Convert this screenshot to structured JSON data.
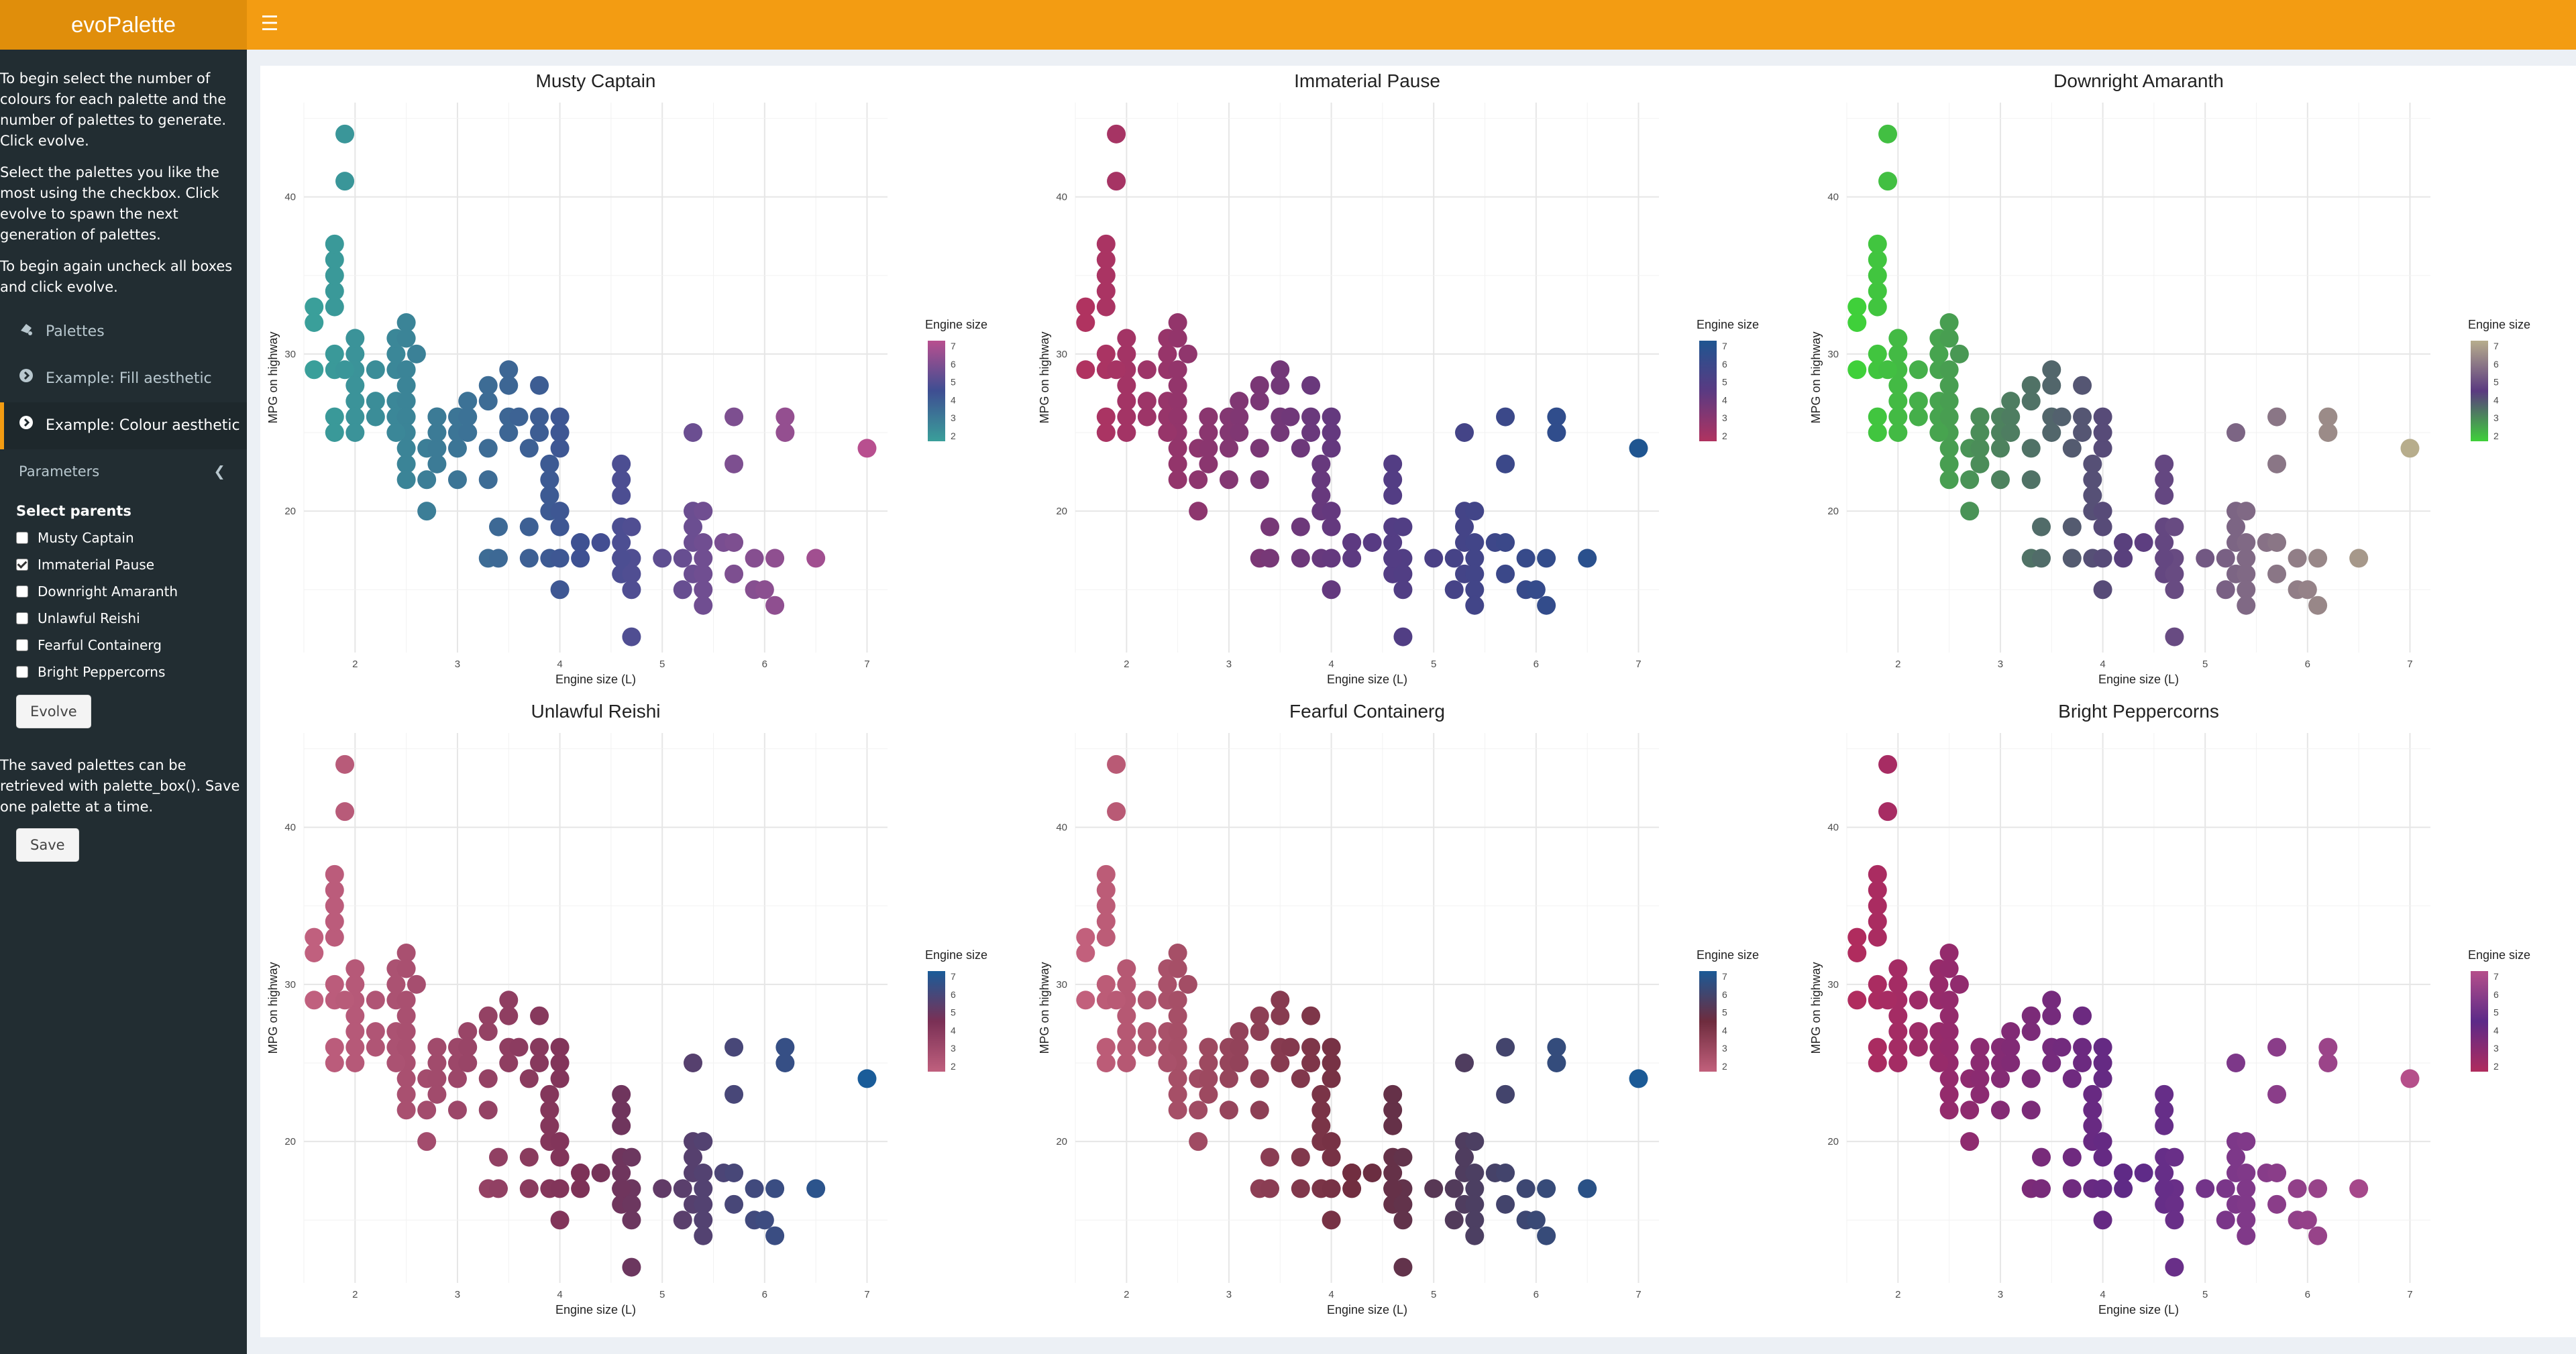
{
  "app": {
    "title": "evoPalette"
  },
  "sidebar": {
    "intro": [
      "To begin select the number of colours for each palette and the number of palettes to generate. Click evolve.",
      "Select the palettes you like the most using the checkbox. Click evolve to spawn the next generation of palettes.",
      "To begin again uncheck all boxes and click evolve."
    ],
    "menu": [
      {
        "label": "Palettes",
        "icon": "palette-icon"
      },
      {
        "label": "Example: Fill aesthetic",
        "icon": "chevron-circle-right-icon"
      },
      {
        "label": "Example: Colour aesthetic",
        "icon": "chevron-circle-right-icon",
        "active": true
      }
    ],
    "parameters_label": "Parameters",
    "select_parents_label": "Select parents",
    "parents": [
      {
        "label": "Musty Captain",
        "checked": false
      },
      {
        "label": "Immaterial Pause",
        "checked": true
      },
      {
        "label": "Downright Amaranth",
        "checked": false
      },
      {
        "label": "Unlawful Reishi",
        "checked": false
      },
      {
        "label": "Fearful Containerg",
        "checked": false
      },
      {
        "label": "Bright Peppercorns",
        "checked": false
      }
    ],
    "evolve_label": "Evolve",
    "save_note": "The saved palettes can be retrieved with palette_box(). Save one palette at a time.",
    "save_label": "Save"
  },
  "chart_data": [
    {
      "type": "scatter",
      "title": "Musty Captain",
      "xlabel": "Engine size (L)",
      "ylabel": "MPG on highway",
      "legend_title": "Engine size",
      "legend_ticks": [
        "7",
        "6",
        "5",
        "4",
        "3",
        "2"
      ],
      "palette": {
        "low": "#3a9f9a",
        "mid": "#3e4e92",
        "high": "#b84f8f"
      },
      "x_ticks": [
        "2",
        "3",
        "4",
        "5",
        "6",
        "7"
      ],
      "y_ticks": [
        "20",
        "30",
        "40"
      ],
      "xlim": [
        1.5,
        7.2
      ],
      "ylim": [
        11,
        46
      ]
    },
    {
      "type": "scatter",
      "title": "Immaterial Pause",
      "xlabel": "Engine size (L)",
      "ylabel": "MPG on highway",
      "legend_title": "Engine size",
      "legend_ticks": [
        "7",
        "6",
        "5",
        "4",
        "3",
        "2"
      ],
      "palette": {
        "low": "#b03360",
        "mid": "#5a3a82",
        "high": "#1f5590"
      },
      "x_ticks": [
        "2",
        "3",
        "4",
        "5",
        "6",
        "7"
      ],
      "y_ticks": [
        "20",
        "30",
        "40"
      ],
      "xlim": [
        1.5,
        7.2
      ],
      "ylim": [
        11,
        46
      ]
    },
    {
      "type": "scatter",
      "title": "Downright Amaranth",
      "xlabel": "Engine size (L)",
      "ylabel": "MPG on highway",
      "legend_title": "Engine size",
      "legend_ticks": [
        "7",
        "6",
        "5",
        "4",
        "3",
        "2"
      ],
      "palette": {
        "low": "#3fd03a",
        "mid": "#5a3a80",
        "high": "#b7ad8c"
      },
      "x_ticks": [
        "2",
        "3",
        "4",
        "5",
        "6",
        "7"
      ],
      "y_ticks": [
        "20",
        "30",
        "40"
      ],
      "xlim": [
        1.5,
        7.2
      ],
      "ylim": [
        11,
        46
      ]
    },
    {
      "type": "scatter",
      "title": "Unlawful Reishi",
      "xlabel": "Engine size (L)",
      "ylabel": "MPG on highway",
      "legend_title": "Engine size",
      "legend_ticks": [
        "7",
        "6",
        "5",
        "4",
        "3",
        "2"
      ],
      "palette": {
        "low": "#c0607e",
        "mid": "#7a3055",
        "high": "#1a5c99"
      },
      "x_ticks": [
        "2",
        "3",
        "4",
        "5",
        "6",
        "7"
      ],
      "y_ticks": [
        "20",
        "30",
        "40"
      ],
      "xlim": [
        1.5,
        7.2
      ],
      "ylim": [
        11,
        46
      ]
    },
    {
      "type": "scatter",
      "title": "Fearful Containerg",
      "xlabel": "Engine size (L)",
      "ylabel": "MPG on highway",
      "legend_title": "Engine size",
      "legend_ticks": [
        "7",
        "6",
        "5",
        "4",
        "3",
        "2"
      ],
      "palette": {
        "low": "#c2607c",
        "mid": "#6e2c3e",
        "high": "#1b5a96"
      },
      "x_ticks": [
        "2",
        "3",
        "4",
        "5",
        "6",
        "7"
      ],
      "y_ticks": [
        "20",
        "30",
        "40"
      ],
      "xlim": [
        1.5,
        7.2
      ],
      "ylim": [
        11,
        46
      ]
    },
    {
      "type": "scatter",
      "title": "Bright Peppercorns",
      "xlabel": "Engine size (L)",
      "ylabel": "MPG on highway",
      "legend_title": "Engine size",
      "legend_ticks": [
        "7",
        "6",
        "5",
        "4",
        "3",
        "2"
      ],
      "palette": {
        "low": "#b02c5e",
        "mid": "#5c2a88",
        "high": "#b54f8a"
      },
      "x_ticks": [
        "2",
        "3",
        "4",
        "5",
        "6",
        "7"
      ],
      "y_ticks": [
        "20",
        "30",
        "40"
      ],
      "xlim": [
        1.5,
        7.2
      ],
      "ylim": [
        11,
        46
      ]
    }
  ],
  "mpg_points": [
    [
      1.6,
      33
    ],
    [
      1.6,
      32
    ],
    [
      1.6,
      29
    ],
    [
      1.8,
      29
    ],
    [
      1.8,
      30
    ],
    [
      1.8,
      26
    ],
    [
      1.8,
      25
    ],
    [
      1.8,
      33
    ],
    [
      1.8,
      34
    ],
    [
      1.8,
      35
    ],
    [
      1.8,
      36
    ],
    [
      1.8,
      37
    ],
    [
      1.9,
      44
    ],
    [
      1.9,
      41
    ],
    [
      2.0,
      30
    ],
    [
      2.0,
      29
    ],
    [
      2.0,
      28
    ],
    [
      2.0,
      27
    ],
    [
      2.0,
      26
    ],
    [
      2.0,
      31
    ],
    [
      2.2,
      26
    ],
    [
      2.2,
      27
    ],
    [
      2.2,
      29
    ],
    [
      2.4,
      27
    ],
    [
      2.4,
      26
    ],
    [
      2.4,
      29
    ],
    [
      2.4,
      30
    ],
    [
      2.4,
      31
    ],
    [
      2.5,
      32
    ],
    [
      2.5,
      31
    ],
    [
      2.5,
      29
    ],
    [
      2.5,
      28
    ],
    [
      2.5,
      27
    ],
    [
      2.5,
      26
    ],
    [
      2.5,
      25
    ],
    [
      2.5,
      24
    ],
    [
      2.5,
      23
    ],
    [
      2.5,
      22
    ],
    [
      2.6,
      30
    ],
    [
      2.7,
      20
    ],
    [
      2.7,
      22
    ],
    [
      2.7,
      24
    ],
    [
      2.8,
      24
    ],
    [
      2.8,
      25
    ],
    [
      2.8,
      26
    ],
    [
      2.8,
      23
    ],
    [
      3.0,
      24
    ],
    [
      3.0,
      26
    ],
    [
      3.0,
      25
    ],
    [
      3.1,
      27
    ],
    [
      3.1,
      26
    ],
    [
      3.1,
      25
    ],
    [
      3.0,
      22
    ],
    [
      3.3,
      17
    ],
    [
      3.3,
      22
    ],
    [
      3.3,
      24
    ],
    [
      3.3,
      28
    ],
    [
      3.4,
      17
    ],
    [
      3.4,
      19
    ],
    [
      3.5,
      26
    ],
    [
      3.5,
      29
    ],
    [
      3.5,
      25
    ],
    [
      3.5,
      28
    ],
    [
      3.6,
      26
    ],
    [
      3.7,
      17
    ],
    [
      3.7,
      19
    ],
    [
      3.7,
      24
    ],
    [
      3.8,
      26
    ],
    [
      3.8,
      28
    ],
    [
      3.8,
      25
    ],
    [
      3.9,
      17
    ],
    [
      3.9,
      20
    ],
    [
      3.9,
      21
    ],
    [
      3.9,
      22
    ],
    [
      3.9,
      23
    ],
    [
      4.0,
      17
    ],
    [
      4.0,
      19
    ],
    [
      4.0,
      20
    ],
    [
      4.0,
      24
    ],
    [
      4.0,
      26
    ],
    [
      4.0,
      15
    ],
    [
      4.2,
      18
    ],
    [
      4.2,
      17
    ],
    [
      4.4,
      18
    ],
    [
      4.6,
      17
    ],
    [
      4.6,
      18
    ],
    [
      4.6,
      19
    ],
    [
      4.6,
      16
    ],
    [
      4.6,
      21
    ],
    [
      4.6,
      22
    ],
    [
      4.6,
      23
    ],
    [
      4.7,
      17
    ],
    [
      4.7,
      19
    ],
    [
      4.7,
      16
    ],
    [
      4.7,
      15
    ],
    [
      4.7,
      12
    ],
    [
      5.0,
      17
    ],
    [
      5.2,
      17
    ],
    [
      5.2,
      15
    ],
    [
      5.3,
      25
    ],
    [
      5.3,
      16
    ],
    [
      5.3,
      18
    ],
    [
      5.3,
      20
    ],
    [
      5.4,
      18
    ],
    [
      5.4,
      17
    ],
    [
      5.4,
      16
    ],
    [
      5.4,
      15
    ],
    [
      5.4,
      14
    ],
    [
      5.4,
      20
    ],
    [
      5.6,
      18
    ],
    [
      5.7,
      16
    ],
    [
      5.7,
      18
    ],
    [
      5.7,
      23
    ],
    [
      5.7,
      26
    ],
    [
      5.9,
      17
    ],
    [
      5.9,
      15
    ],
    [
      6.0,
      15
    ],
    [
      6.1,
      17
    ],
    [
      6.2,
      26
    ],
    [
      6.2,
      25
    ],
    [
      6.1,
      14
    ],
    [
      6.5,
      17
    ],
    [
      7.0,
      24
    ],
    [
      4.0,
      25
    ],
    [
      3.3,
      27
    ],
    [
      2.8,
      26
    ],
    [
      1.9,
      29
    ],
    [
      2.0,
      25
    ],
    [
      2.4,
      25
    ],
    [
      5.3,
      19
    ],
    [
      4.6,
      17
    ],
    [
      4.2,
      18
    ]
  ]
}
